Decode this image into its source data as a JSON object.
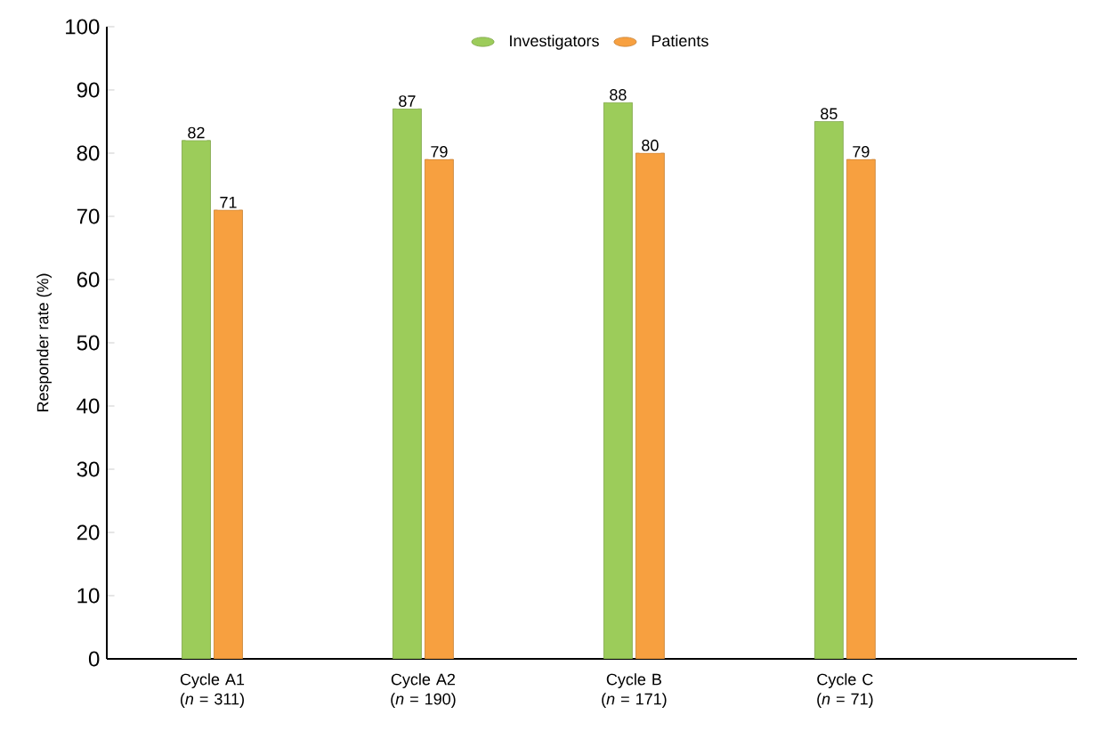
{
  "chart_data": {
    "type": "bar",
    "ylabel": "Responder rate (%)",
    "categories": [
      "Cycle A1 (*n* = 311)",
      "Cycle A2 (*n* = 190)",
      "Cycle B (*n* = 171)",
      "Cycle C (*n* = 71)"
    ],
    "series": [
      {
        "name": "Investigators",
        "color": "#9ccc5a",
        "values": [
          82,
          87,
          88,
          85
        ]
      },
      {
        "name": "Patients",
        "color": "#f7a040",
        "values": [
          71,
          79,
          80,
          79
        ]
      }
    ],
    "ylim": [
      0,
      100
    ],
    "yticks": [
      0,
      10,
      20,
      30,
      40,
      50,
      60,
      70,
      80,
      90,
      100
    ],
    "data_labels": true,
    "grid": false,
    "legend": "top"
  }
}
